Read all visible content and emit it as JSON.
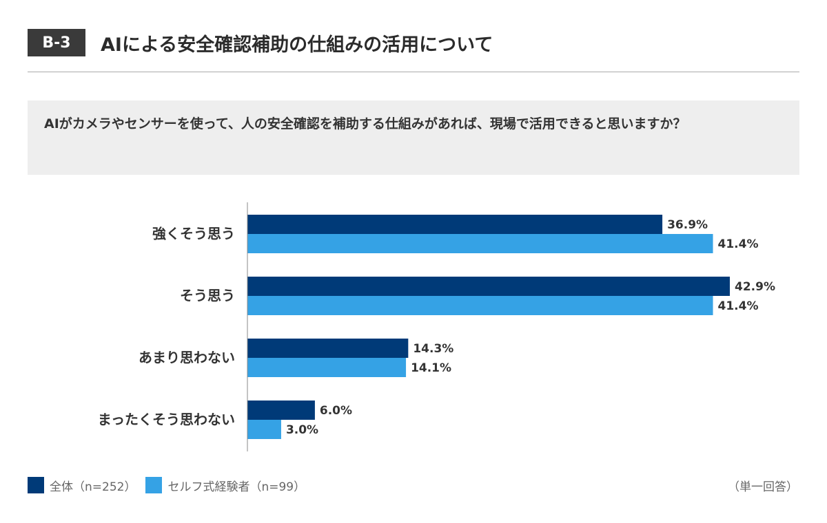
{
  "header": {
    "badge": "B-3",
    "title": "AIによる安全確認補助の仕組みの活用について"
  },
  "question": "AIがカメラやセンサーを使って、人の安全確認を補助する仕組みがあれば、現場で活用できると思いますか？",
  "note": "（単一回答）",
  "colors": {
    "series_1": "#003A78",
    "series_2": "#35A2E5",
    "axis": "#888888",
    "label_text": "#333333"
  },
  "legend": [
    {
      "label": "全体（n=252）",
      "color": "#003A78"
    },
    {
      "label": "セルフ式経験者（n=99）",
      "color": "#35A2E5"
    }
  ],
  "chart_data": {
    "type": "bar",
    "orientation": "horizontal",
    "title": "AIによる安全確認補助の仕組みの活用について",
    "categories": [
      "強くそう思う",
      "そう思う",
      "あまり思わない",
      "まったくそう思わない"
    ],
    "series": [
      {
        "name": "全体（n=252）",
        "values": [
          36.9,
          42.9,
          14.3,
          6.0
        ],
        "color": "#003A78"
      },
      {
        "name": "セルフ式経験者（n=99）",
        "values": [
          41.4,
          41.4,
          14.1,
          3.0
        ],
        "color": "#35A2E5"
      }
    ],
    "value_suffix": "%",
    "xlim": [
      0,
      42.9
    ],
    "grid": false,
    "legend_position": "bottom-left"
  }
}
